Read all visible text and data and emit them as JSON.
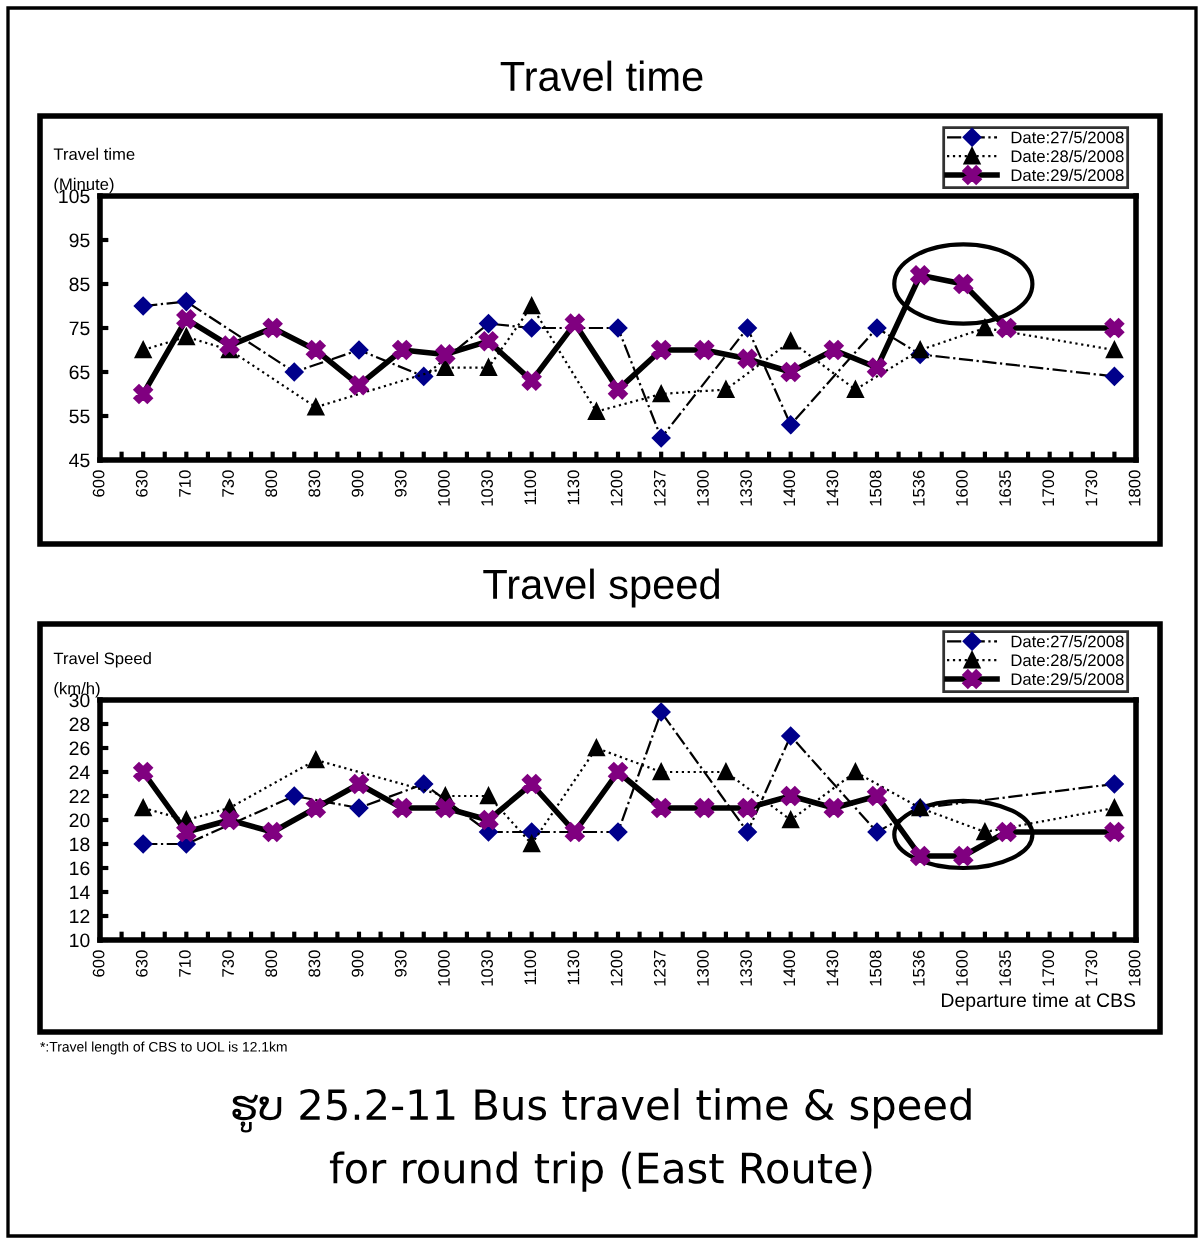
{
  "chart_data": [
    {
      "type": "line",
      "title": "Travel time",
      "ylabel": "Travel time\n(Minute)",
      "categories": [
        "600",
        null,
        "630",
        null,
        "710",
        null,
        "730",
        null,
        "800",
        null,
        "830",
        null,
        "900",
        null,
        "930",
        null,
        "1000",
        null,
        "1030",
        null,
        "1100",
        null,
        "1130",
        null,
        "1200",
        null,
        "1237",
        null,
        "1300",
        null,
        "1330",
        null,
        "1400",
        null,
        "1430",
        null,
        "1508",
        null,
        "1536",
        null,
        "1600",
        null,
        "1635",
        null,
        "1700",
        null,
        "1730",
        null,
        "1800"
      ],
      "ylim": [
        45,
        105
      ],
      "yticks": [
        45,
        55,
        65,
        75,
        85,
        95,
        105
      ],
      "grid": false,
      "legend": "top right",
      "series": [
        {
          "name": "Date:27/5/2008",
          "color": "#00008b",
          "marker": "diamond",
          "line_style": "dashed",
          "values": [
            null,
            null,
            80,
            null,
            81,
            null,
            null,
            null,
            null,
            65,
            null,
            null,
            70,
            null,
            null,
            64,
            null,
            null,
            76,
            null,
            75,
            null,
            null,
            null,
            75,
            null,
            50,
            null,
            null,
            null,
            75,
            null,
            53,
            null,
            null,
            null,
            75,
            null,
            69,
            null,
            null,
            null,
            null,
            null,
            null,
            null,
            null,
            64,
            null
          ]
        },
        {
          "name": "Date:28/5/2008",
          "color": "#000000",
          "marker": "triangle",
          "line_style": "dotted",
          "values": [
            null,
            null,
            70,
            null,
            73,
            null,
            70,
            null,
            null,
            null,
            57,
            null,
            null,
            null,
            null,
            null,
            66,
            null,
            66,
            null,
            80,
            null,
            null,
            56,
            null,
            null,
            60,
            null,
            null,
            61,
            null,
            null,
            72,
            null,
            null,
            61,
            null,
            null,
            70,
            null,
            null,
            75,
            null,
            null,
            null,
            null,
            null,
            70,
            null
          ]
        },
        {
          "name": "Date:29/5/2008",
          "color": "#800080",
          "marker": "cross",
          "line_style": "solid",
          "values": [
            null,
            null,
            60,
            null,
            77,
            null,
            71,
            null,
            75,
            null,
            70,
            null,
            62,
            null,
            70,
            null,
            69,
            null,
            72,
            null,
            63,
            null,
            76,
            null,
            61,
            null,
            70,
            null,
            70,
            null,
            68,
            null,
            65,
            null,
            70,
            null,
            66,
            null,
            87,
            null,
            85,
            null,
            75,
            null,
            null,
            null,
            null,
            75,
            null
          ]
        }
      ]
    },
    {
      "type": "line",
      "title": "Travel speed",
      "ylabel": "Travel Speed\n(km/h)",
      "xlabel": "Departure time at CBS",
      "categories": [
        "600",
        null,
        "630",
        null,
        "710",
        null,
        "730",
        null,
        "800",
        null,
        "830",
        null,
        "900",
        null,
        "930",
        null,
        "1000",
        null,
        "1030",
        null,
        "1100",
        null,
        "1130",
        null,
        "1200",
        null,
        "1237",
        null,
        "1300",
        null,
        "1330",
        null,
        "1400",
        null,
        "1430",
        null,
        "1508",
        null,
        "1536",
        null,
        "1600",
        null,
        "1635",
        null,
        "1700",
        null,
        "1730",
        null,
        "1800"
      ],
      "ylim": [
        10,
        30
      ],
      "yticks": [
        10,
        12,
        14,
        16,
        18,
        20,
        22,
        24,
        26,
        28,
        30
      ],
      "grid": false,
      "legend": "top right",
      "series": [
        {
          "name": "Date:27/5/2008",
          "color": "#00008b",
          "marker": "diamond",
          "line_style": "dashed",
          "values": [
            null,
            null,
            18,
            null,
            18,
            null,
            null,
            null,
            null,
            22,
            null,
            null,
            21,
            null,
            null,
            23,
            null,
            null,
            19,
            null,
            19,
            null,
            null,
            null,
            19,
            null,
            29,
            null,
            null,
            null,
            19,
            null,
            27,
            null,
            null,
            null,
            19,
            null,
            21,
            null,
            null,
            null,
            null,
            null,
            null,
            null,
            null,
            23,
            null
          ]
        },
        {
          "name": "Date:28/5/2008",
          "color": "#000000",
          "marker": "triangle",
          "line_style": "dotted",
          "values": [
            null,
            null,
            21,
            null,
            20,
            null,
            21,
            null,
            null,
            null,
            25,
            null,
            null,
            null,
            null,
            null,
            22,
            null,
            22,
            null,
            18,
            null,
            null,
            26,
            null,
            null,
            24,
            null,
            null,
            24,
            null,
            null,
            20,
            null,
            null,
            24,
            null,
            null,
            21,
            null,
            null,
            19,
            null,
            null,
            null,
            null,
            null,
            21,
            null
          ]
        },
        {
          "name": "Date:29/5/2008",
          "color": "#800080",
          "marker": "cross",
          "line_style": "solid",
          "values": [
            null,
            null,
            24,
            null,
            19,
            null,
            20,
            null,
            19,
            null,
            21,
            null,
            23,
            null,
            21,
            null,
            21,
            null,
            20,
            null,
            23,
            null,
            19,
            null,
            24,
            null,
            21,
            null,
            21,
            null,
            21,
            null,
            22,
            null,
            21,
            null,
            22,
            null,
            17,
            null,
            17,
            null,
            19,
            null,
            null,
            null,
            null,
            19,
            null
          ]
        }
      ],
      "annotations": [
        "*:Travel length of CBS to UOL is 12.1km",
        "ຮູບ 25.2-11 Bus travel time & speed\nfor round trip (East Route)"
      ]
    }
  ]
}
